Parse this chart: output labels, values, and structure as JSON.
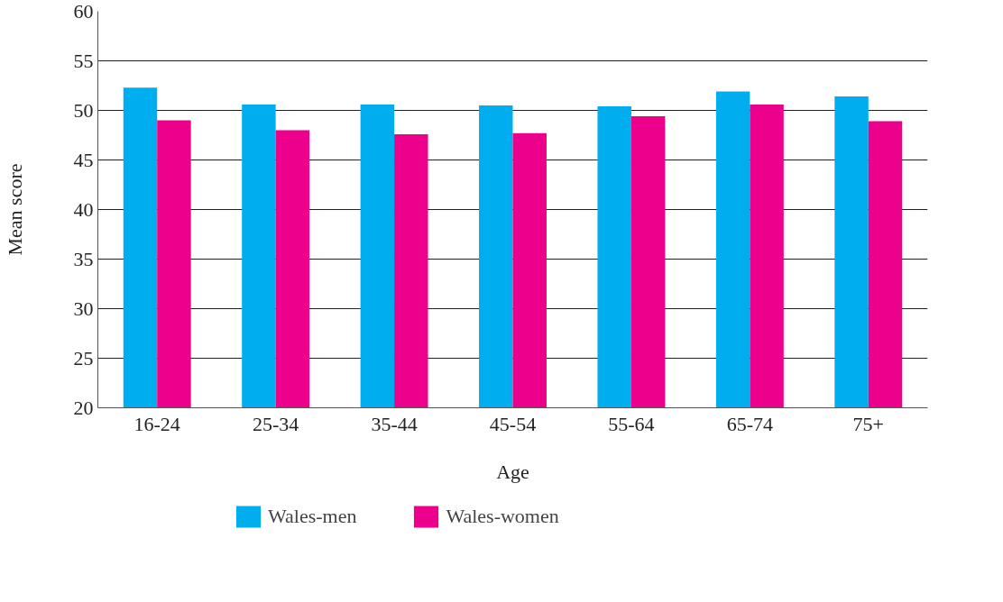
{
  "chart_data": {
    "type": "bar",
    "xlabel": "Age",
    "ylabel": "Mean score",
    "categories": [
      "16-24",
      "25-34",
      "35-44",
      "45-54",
      "55-64",
      "65-74",
      "75+"
    ],
    "series": [
      {
        "name": "Wales-men",
        "color": "#00aeef",
        "values": [
          52.3,
          50.6,
          50.6,
          50.5,
          50.4,
          51.9,
          51.4
        ]
      },
      {
        "name": "Wales-women",
        "color": "#ec008c",
        "values": [
          49.0,
          48.0,
          47.6,
          47.7,
          49.4,
          50.6,
          48.9
        ]
      }
    ],
    "ylim": [
      20,
      60
    ],
    "yticks": [
      20,
      25,
      30,
      35,
      40,
      45,
      50,
      55,
      60
    ],
    "grid": "y",
    "legend": "bottom"
  }
}
